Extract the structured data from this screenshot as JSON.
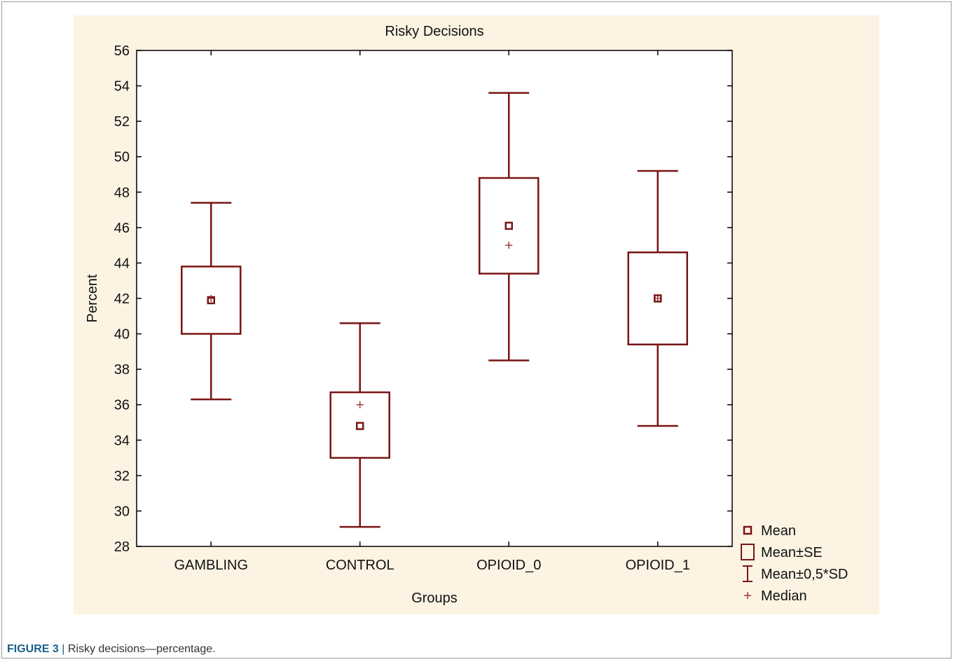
{
  "chart_data": {
    "type": "box",
    "title": "Risky Decisions",
    "xlabel": "Groups",
    "ylabel": "Percent",
    "ylim": [
      28,
      56
    ],
    "yticks": [
      28,
      30,
      32,
      34,
      36,
      38,
      40,
      42,
      44,
      46,
      48,
      50,
      52,
      54,
      56
    ],
    "categories": [
      "GAMBLING",
      "CONTROL",
      "OPIOID_0",
      "OPIOID_1"
    ],
    "series": [
      {
        "category": "GAMBLING",
        "mean": 41.9,
        "se_low": 40.0,
        "se_high": 43.8,
        "sd_low": 36.3,
        "sd_high": 47.4,
        "median": 42.0
      },
      {
        "category": "CONTROL",
        "mean": 34.8,
        "se_low": 33.0,
        "se_high": 36.7,
        "sd_low": 29.1,
        "sd_high": 40.6,
        "median": 36.0
      },
      {
        "category": "OPIOID_0",
        "mean": 46.1,
        "se_low": 43.4,
        "se_high": 48.8,
        "sd_low": 38.5,
        "sd_high": 53.6,
        "median": 45.0
      },
      {
        "category": "OPIOID_1",
        "mean": 42.0,
        "se_low": 39.4,
        "se_high": 44.6,
        "sd_low": 34.8,
        "sd_high": 49.2,
        "median": 42.0
      }
    ],
    "legend": {
      "placement": "bottom-right",
      "items": [
        "Mean",
        "Mean±SE",
        "Mean±0,5*SD",
        "Median"
      ]
    },
    "grid": false,
    "colors": {
      "series": "#7a1414",
      "panel": "#fcf3e3",
      "plot_area": "#ffffff",
      "median_marker": "#a33a3a"
    }
  },
  "caption": {
    "label": "FIGURE 3",
    "separator": " | ",
    "text": "Risky decisions—percentage."
  }
}
